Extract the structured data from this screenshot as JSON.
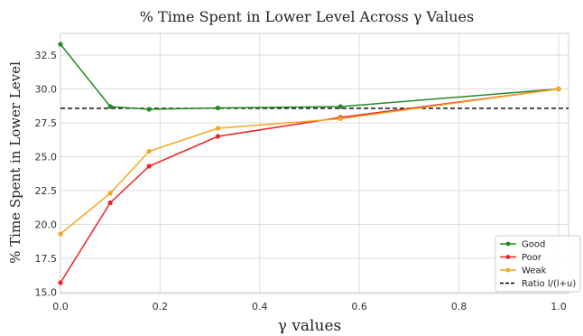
{
  "chart_data": {
    "type": "line",
    "title": "% Time Spent in Lower Level Across γ Values",
    "xlabel": "γ  values",
    "ylabel": "% Time Spent in Lower Level",
    "xlim": [
      0.0,
      1.02
    ],
    "ylim": [
      14.9,
      34.1
    ],
    "xticks": [
      0.0,
      0.2,
      0.4,
      0.6,
      0.8,
      1.0
    ],
    "xtick_labels": [
      "0.0",
      "0.2",
      "0.4",
      "0.6",
      "0.8",
      "1.0"
    ],
    "yticks": [
      15.0,
      17.5,
      20.0,
      22.5,
      25.0,
      27.5,
      30.0,
      32.5
    ],
    "ytick_labels": [
      "15.0",
      "17.5",
      "20.0",
      "22.5",
      "25.0",
      "27.5",
      "30.0",
      "32.5"
    ],
    "grid": true,
    "legend_position": "bottom-right",
    "x": [
      0.0,
      0.1,
      0.178,
      0.316,
      0.562,
      1.0
    ],
    "series": [
      {
        "name": "Good",
        "color": "#228B22",
        "marker": true,
        "values": [
          33.3,
          28.7,
          28.5,
          28.6,
          28.7,
          30.0
        ]
      },
      {
        "name": "Poor",
        "color": "#ee2222",
        "marker": true,
        "values": [
          15.7,
          21.6,
          24.3,
          26.5,
          27.9,
          30.0
        ]
      },
      {
        "name": "Weak",
        "color": "#f5a623",
        "marker": true,
        "values": [
          19.3,
          22.3,
          25.4,
          27.1,
          27.8,
          30.0
        ]
      }
    ],
    "reference_line": {
      "name": "Ratio l/(l+u)",
      "color": "#000000",
      "style": "dashed",
      "y": 28.57
    }
  }
}
